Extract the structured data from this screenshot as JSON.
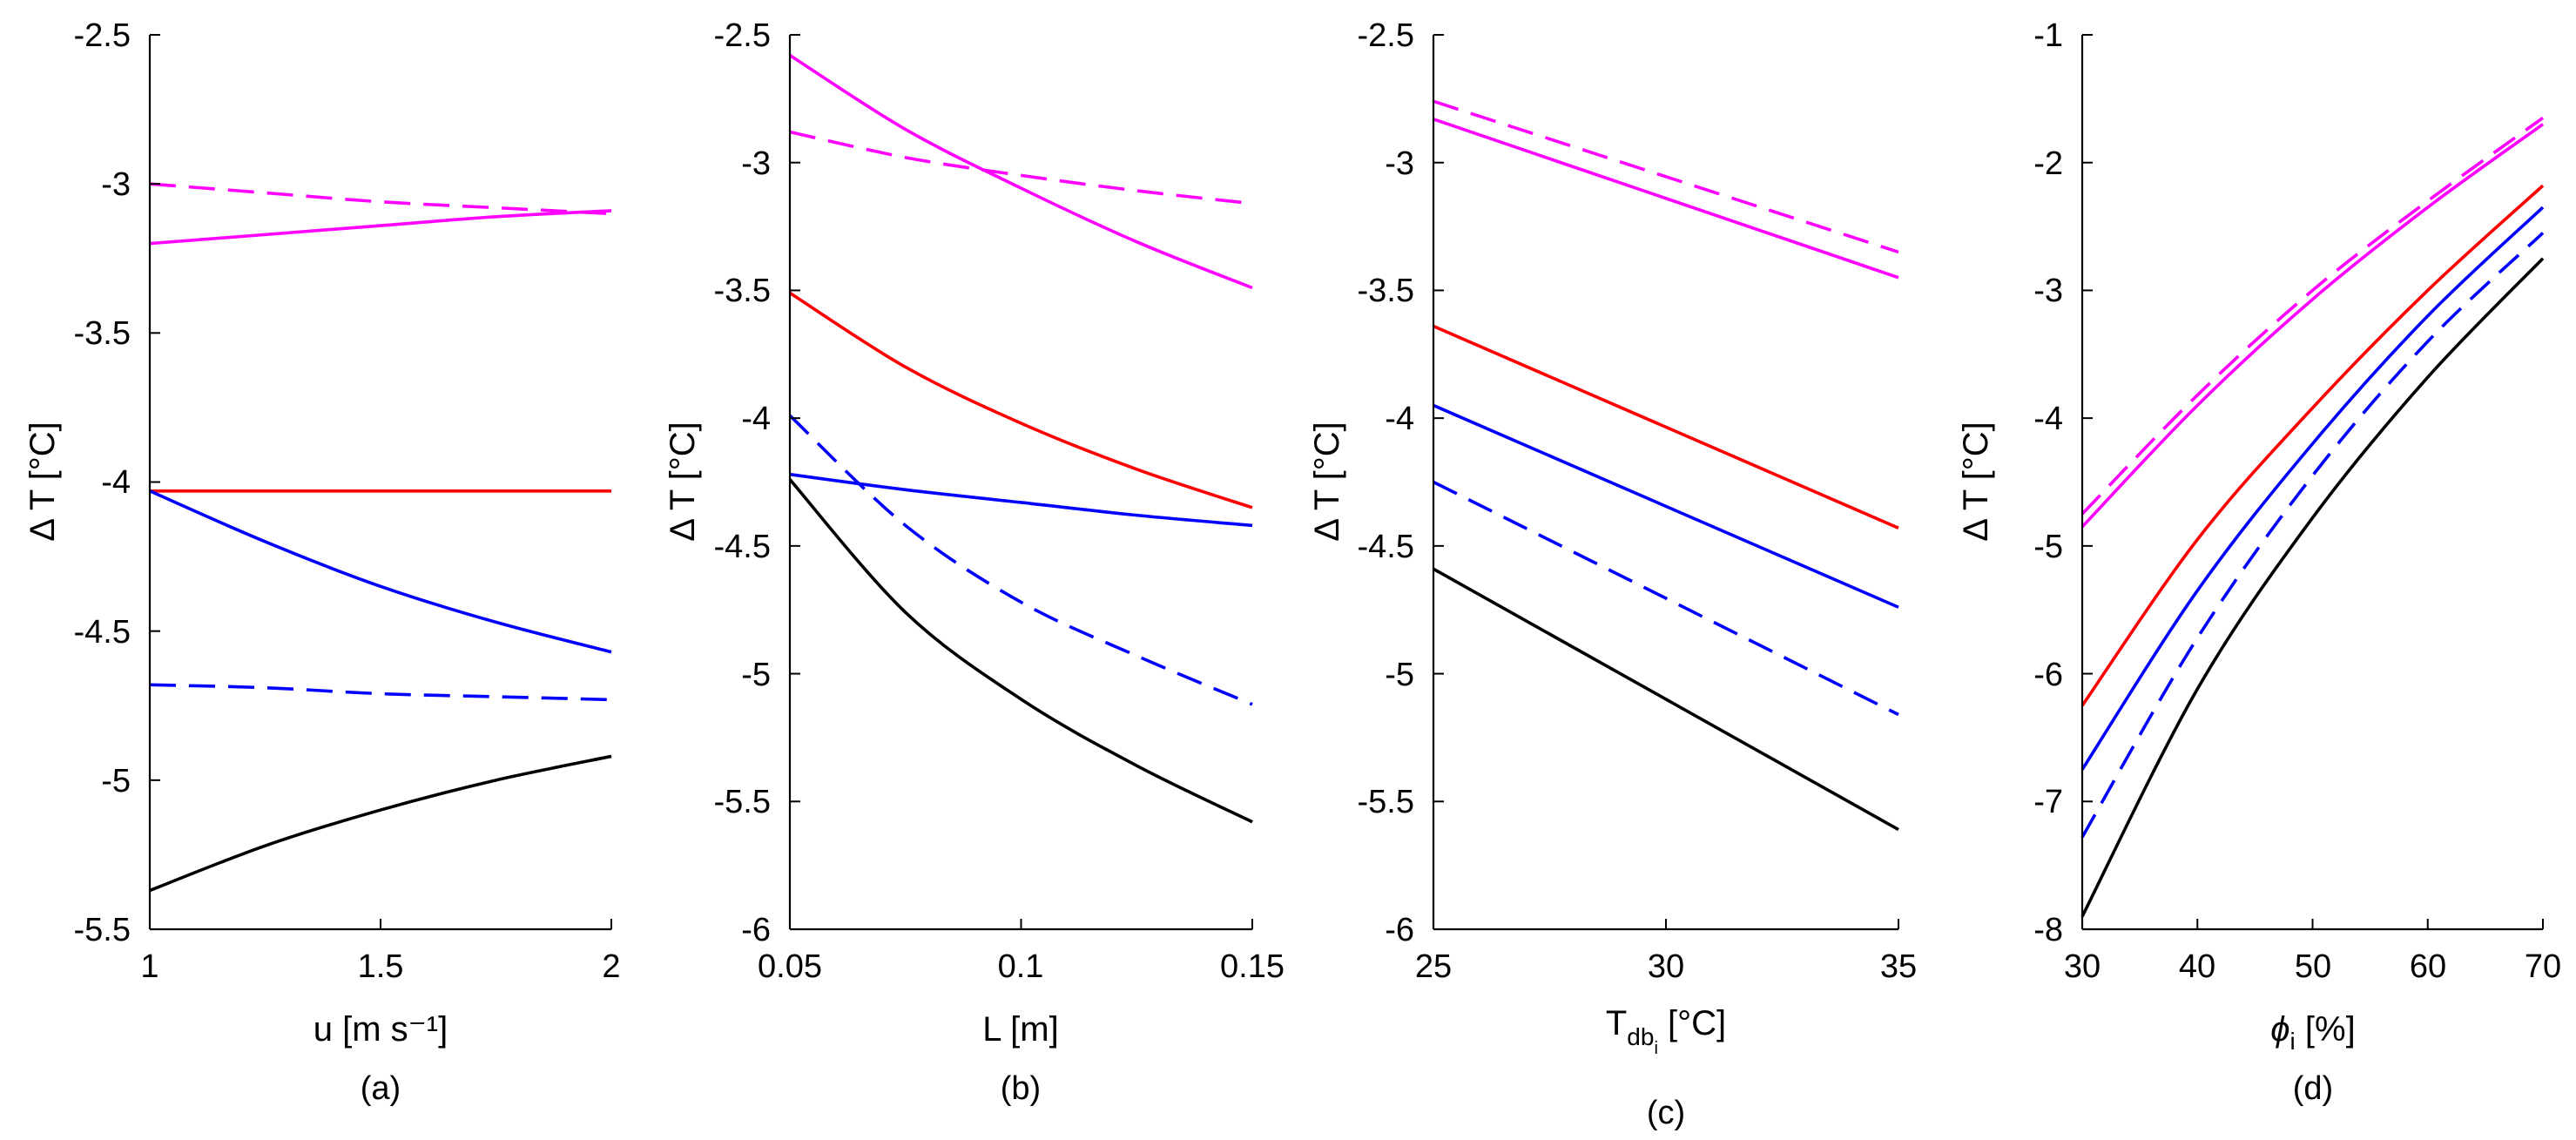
{
  "colors": {
    "magenta": "#ff00ff",
    "red": "#ff0000",
    "blue": "#0000ff",
    "black": "#000000"
  },
  "chart_data": [
    {
      "type": "line",
      "panel_label": "(a)",
      "xlabel": "u [m s⁻¹]",
      "ylabel": "Δ T [°C]",
      "xlim": [
        1,
        2
      ],
      "ylim": [
        -5.5,
        -2.5
      ],
      "xticks": [
        "1",
        "1.5",
        "2"
      ],
      "yticks": [
        "-2.5",
        "-3",
        "-3.5",
        "-4",
        "-4.5",
        "-5",
        "-5.5"
      ],
      "series": [
        {
          "color": "magenta",
          "style": "dashed",
          "x": [
            1,
            1.25,
            1.5,
            1.75,
            2
          ],
          "y": [
            -3.0,
            -3.03,
            -3.06,
            -3.08,
            -3.1
          ]
        },
        {
          "color": "magenta",
          "style": "solid",
          "x": [
            1,
            1.25,
            1.5,
            1.75,
            2
          ],
          "y": [
            -3.2,
            -3.17,
            -3.14,
            -3.11,
            -3.09
          ]
        },
        {
          "color": "red",
          "style": "solid",
          "x": [
            1,
            1.25,
            1.5,
            1.75,
            2
          ],
          "y": [
            -4.03,
            -4.03,
            -4.03,
            -4.03,
            -4.03
          ]
        },
        {
          "color": "blue",
          "style": "solid",
          "x": [
            1,
            1.25,
            1.5,
            1.75,
            2
          ],
          "y": [
            -4.03,
            -4.2,
            -4.35,
            -4.47,
            -4.57
          ]
        },
        {
          "color": "blue",
          "style": "dashed",
          "x": [
            1,
            1.25,
            1.5,
            1.75,
            2
          ],
          "y": [
            -4.68,
            -4.69,
            -4.71,
            -4.72,
            -4.73
          ]
        },
        {
          "color": "black",
          "style": "solid",
          "x": [
            1,
            1.25,
            1.5,
            1.75,
            2
          ],
          "y": [
            -5.37,
            -5.22,
            -5.1,
            -5.0,
            -4.92
          ]
        }
      ]
    },
    {
      "type": "line",
      "panel_label": "(b)",
      "xlabel": "L [m]",
      "ylabel": "Δ T [°C]",
      "xlim": [
        0.05,
        0.15
      ],
      "ylim": [
        -6,
        -2.5
      ],
      "xticks": [
        "0.05",
        "0.1",
        "0.15"
      ],
      "yticks": [
        "-2.5",
        "-3",
        "-3.5",
        "-4",
        "-4.5",
        "-5",
        "-5.5",
        "-6"
      ],
      "series": [
        {
          "color": "magenta",
          "style": "solid",
          "x": [
            0.05,
            0.075,
            0.1,
            0.125,
            0.15
          ],
          "y": [
            -2.58,
            -2.87,
            -3.1,
            -3.31,
            -3.49
          ]
        },
        {
          "color": "magenta",
          "style": "dashed",
          "x": [
            0.05,
            0.075,
            0.1,
            0.125,
            0.15
          ],
          "y": [
            -2.88,
            -2.98,
            -3.05,
            -3.11,
            -3.16
          ]
        },
        {
          "color": "red",
          "style": "solid",
          "x": [
            0.05,
            0.075,
            0.1,
            0.125,
            0.15
          ],
          "y": [
            -3.51,
            -3.8,
            -4.02,
            -4.2,
            -4.35
          ]
        },
        {
          "color": "blue",
          "style": "solid",
          "x": [
            0.05,
            0.075,
            0.1,
            0.125,
            0.15
          ],
          "y": [
            -4.22,
            -4.28,
            -4.33,
            -4.38,
            -4.42
          ]
        },
        {
          "color": "blue",
          "style": "dashed",
          "x": [
            0.05,
            0.075,
            0.1,
            0.125,
            0.15
          ],
          "y": [
            -3.99,
            -4.42,
            -4.72,
            -4.93,
            -5.12
          ]
        },
        {
          "color": "black",
          "style": "solid",
          "x": [
            0.05,
            0.075,
            0.1,
            0.125,
            0.15
          ],
          "y": [
            -4.24,
            -4.76,
            -5.1,
            -5.36,
            -5.58
          ]
        }
      ]
    },
    {
      "type": "line",
      "panel_label": "(c)",
      "xlabel_main": "T",
      "xlabel_sub": "db",
      "xlabel_subsub": "i",
      "xlabel_unit": " [°C]",
      "ylabel": "Δ T [°C]",
      "xlim": [
        25,
        35
      ],
      "ylim": [
        -6,
        -2.5
      ],
      "xticks": [
        "25",
        "30",
        "35"
      ],
      "yticks": [
        "-2.5",
        "-3",
        "-3.5",
        "-4",
        "-4.5",
        "-5",
        "-5.5",
        "-6"
      ],
      "series": [
        {
          "color": "magenta",
          "style": "dashed",
          "x": [
            25,
            35
          ],
          "y": [
            -2.76,
            -3.35
          ]
        },
        {
          "color": "magenta",
          "style": "solid",
          "x": [
            25,
            35
          ],
          "y": [
            -2.83,
            -3.45
          ]
        },
        {
          "color": "red",
          "style": "solid",
          "x": [
            25,
            35
          ],
          "y": [
            -3.64,
            -4.43
          ]
        },
        {
          "color": "blue",
          "style": "solid",
          "x": [
            25,
            35
          ],
          "y": [
            -3.95,
            -4.74
          ]
        },
        {
          "color": "blue",
          "style": "dashed",
          "x": [
            25,
            35
          ],
          "y": [
            -4.25,
            -5.16
          ]
        },
        {
          "color": "black",
          "style": "solid",
          "x": [
            25,
            35
          ],
          "y": [
            -4.59,
            -5.61
          ]
        }
      ]
    },
    {
      "type": "line",
      "panel_label": "(d)",
      "xlabel_main": "ϕ",
      "xlabel_sub": "i",
      "xlabel_unit": " [%]",
      "ylabel": "Δ T [°C]",
      "xlim": [
        30,
        70
      ],
      "ylim": [
        -8,
        -1
      ],
      "xticks": [
        "30",
        "40",
        "50",
        "60",
        "70"
      ],
      "yticks": [
        "-1",
        "-2",
        "-3",
        "-4",
        "-5",
        "-6",
        "-7",
        "-8"
      ],
      "series": [
        {
          "color": "magenta",
          "style": "dashed",
          "x": [
            30,
            40,
            50,
            60,
            70
          ],
          "y": [
            -4.75,
            -3.82,
            -3.0,
            -2.3,
            -1.65
          ]
        },
        {
          "color": "magenta",
          "style": "solid",
          "x": [
            30,
            40,
            50,
            60,
            70
          ],
          "y": [
            -4.85,
            -3.9,
            -3.07,
            -2.35,
            -1.7
          ]
        },
        {
          "color": "red",
          "style": "solid",
          "x": [
            30,
            40,
            50,
            60,
            70
          ],
          "y": [
            -6.25,
            -4.95,
            -3.92,
            -3.0,
            -2.18
          ]
        },
        {
          "color": "blue",
          "style": "solid",
          "x": [
            30,
            40,
            50,
            60,
            70
          ],
          "y": [
            -6.75,
            -5.35,
            -4.2,
            -3.2,
            -2.35
          ]
        },
        {
          "color": "blue",
          "style": "dashed",
          "x": [
            30,
            40,
            50,
            60,
            70
          ],
          "y": [
            -7.28,
            -5.72,
            -4.45,
            -3.4,
            -2.55
          ]
        },
        {
          "color": "black",
          "style": "solid",
          "x": [
            30,
            40,
            50,
            60,
            70
          ],
          "y": [
            -7.9,
            -6.12,
            -4.78,
            -3.68,
            -2.75
          ]
        }
      ]
    }
  ]
}
